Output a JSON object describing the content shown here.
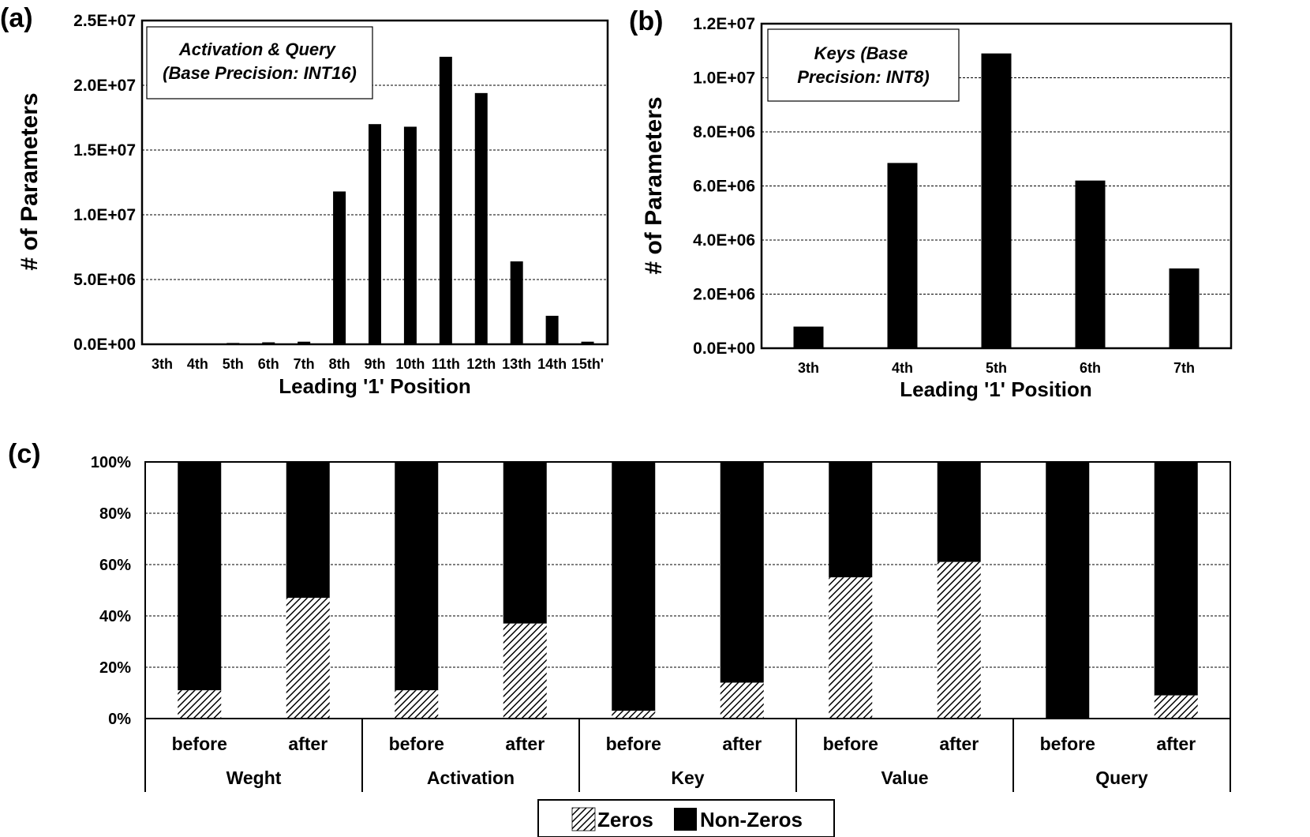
{
  "colors": {
    "bar": "#000000",
    "grid": "#000000",
    "background": "#ffffff"
  },
  "chart_data": [
    {
      "panel_label": "(a)",
      "type": "bar",
      "title": "Activation & Query\n(Base Precision: INT16)",
      "xlabel": "Leading '1' Position",
      "ylabel": "# of Parameters",
      "categories": [
        "3th",
        "4th",
        "5th",
        "6th",
        "7th",
        "8th",
        "9th",
        "10th",
        "11th",
        "12th",
        "13th",
        "14th",
        "15th'"
      ],
      "values": [
        20000,
        30000,
        100000,
        150000,
        200000,
        11800000,
        17000000,
        16800000,
        22200000,
        19400000,
        6400000,
        2200000,
        200000
      ],
      "ylim": [
        0,
        25000000
      ],
      "yticks": [
        0,
        5000000,
        10000000,
        15000000,
        20000000,
        25000000
      ],
      "ytick_labels": [
        "0.0E+00",
        "5.0E+06",
        "1.0E+07",
        "1.5E+07",
        "2.0E+07",
        "2.5E+07"
      ],
      "grid": true
    },
    {
      "panel_label": "(b)",
      "type": "bar",
      "title": "Keys (Base\nPrecision: INT8)",
      "xlabel": "Leading '1' Position",
      "ylabel": "# of Parameters",
      "categories": [
        "3th",
        "4th",
        "5th",
        "6th",
        "7th"
      ],
      "values": [
        800000,
        6850000,
        10900000,
        6200000,
        2950000
      ],
      "ylim": [
        0,
        12000000
      ],
      "yticks": [
        0,
        2000000,
        4000000,
        6000000,
        8000000,
        10000000,
        12000000
      ],
      "ytick_labels": [
        "0.0E+00",
        "2.0E+06",
        "4.0E+06",
        "6.0E+06",
        "8.0E+06",
        "1.0E+07",
        "1.2E+07"
      ],
      "grid": true
    },
    {
      "panel_label": "(c)",
      "type": "bar",
      "stacked": true,
      "groups": [
        "Weght",
        "Activation",
        "Key",
        "Value",
        "Query"
      ],
      "subcategories": [
        "before",
        "after"
      ],
      "series": [
        {
          "name": "Zeros",
          "values": [
            11,
            47,
            11,
            37,
            3,
            14,
            55,
            61,
            0,
            9
          ]
        },
        {
          "name": "Non-Zeros",
          "values": [
            89,
            53,
            89,
            63,
            97,
            86,
            45,
            39,
            100,
            91
          ]
        }
      ],
      "ylim": [
        0,
        100
      ],
      "yticks": [
        0,
        20,
        40,
        60,
        80,
        100
      ],
      "ytick_labels": [
        "0%",
        "20%",
        "40%",
        "60%",
        "80%",
        "100%"
      ],
      "legend_position": "bottom-center",
      "grid": true
    }
  ]
}
